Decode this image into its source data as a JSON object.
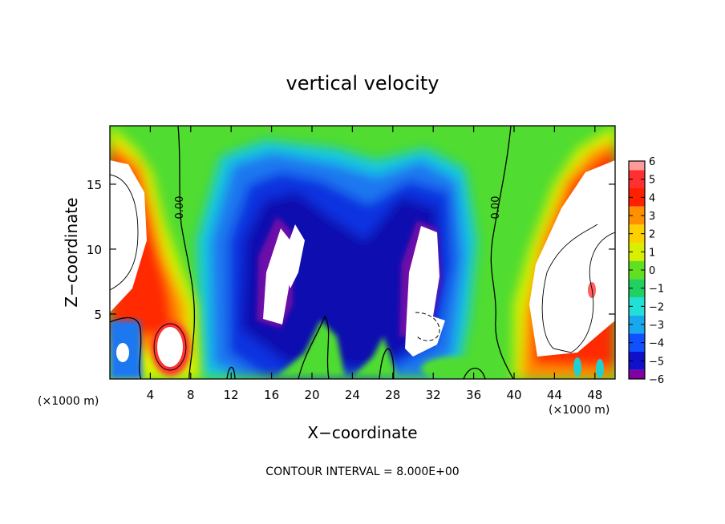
{
  "chart_data": {
    "type": "heatmap",
    "title": "vertical velocity",
    "xlabel": "X−coordinate",
    "ylabel": "Z−coordinate",
    "x_unit_left": "(×1000 m)",
    "x_unit_right": "(×1000 m)",
    "footer": "CONTOUR INTERVAL = 8.000E+00",
    "xlim": [
      0,
      50
    ],
    "ylim": [
      0,
      19.5
    ],
    "x_ticks": [
      4,
      8,
      12,
      16,
      20,
      24,
      28,
      32,
      36,
      40,
      44,
      48
    ],
    "x_tick_labels": [
      "4",
      "8",
      "12",
      "16",
      "20",
      "24",
      "28",
      "32",
      "36",
      "40",
      "44",
      "48"
    ],
    "y_ticks": [
      5,
      10,
      15
    ],
    "y_tick_labels": [
      "5",
      "10",
      "15"
    ],
    "colorbar": {
      "min": -6,
      "max": 6,
      "labels": [
        "6",
        "5",
        "4",
        "3",
        "2",
        "1",
        "0",
        "−1",
        "−2",
        "−3",
        "−4",
        "−5",
        "−6"
      ],
      "colors": [
        "#ff9a9a",
        "#ff3030",
        "#ff2000",
        "#ff9000",
        "#ffd000",
        "#d8f000",
        "#60e020",
        "#20d060",
        "#20e0d8",
        "#18a8f0",
        "#1050ff",
        "#1010c8",
        "#8000a0"
      ]
    },
    "contour_labels": [
      {
        "text": "0.00",
        "x": 5.8,
        "y": 13.2
      },
      {
        "text": "0.00",
        "x": 38.4,
        "y": 13.2
      }
    ]
  }
}
